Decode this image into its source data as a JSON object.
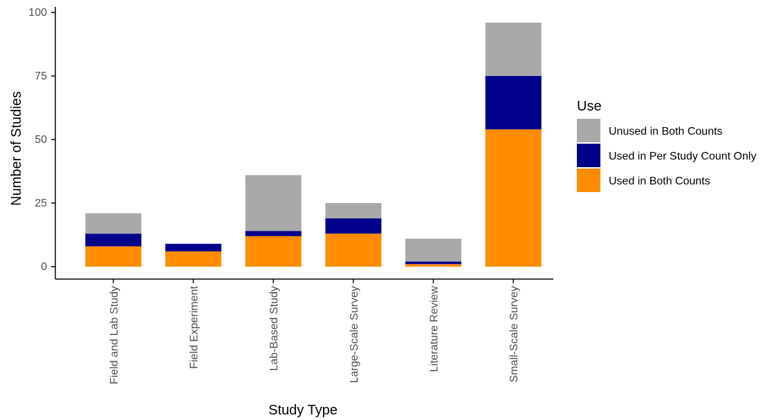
{
  "chart_data": {
    "type": "bar",
    "stacked": true,
    "title": "",
    "xlabel": "Study Type",
    "ylabel": "Number of Studies",
    "ylim": [
      0,
      100
    ],
    "yticks": [
      0,
      25,
      50,
      75,
      100
    ],
    "grid": false,
    "legend_title": "Use",
    "legend_position": "right",
    "categories": [
      "Field and Lab Study",
      "Field Experiment",
      "Lab-Based Study",
      "Large-Scale Survey",
      "Literature Review",
      "Small-Scale Survey"
    ],
    "series": [
      {
        "name": "Used in Both Counts",
        "color": "#ff8c00",
        "values": [
          8,
          6,
          12,
          13,
          1,
          54
        ]
      },
      {
        "name": "Used in Per Study Count Only",
        "color": "#00008b",
        "values": [
          5,
          3,
          2,
          6,
          1,
          21
        ]
      },
      {
        "name": "Unused in Both Counts",
        "color": "#a9a9a9",
        "values": [
          8,
          0,
          22,
          6,
          9,
          21
        ]
      }
    ],
    "legend_order": [
      "Unused in Both Counts",
      "Used in Per Study Count Only",
      "Used in Both Counts"
    ]
  }
}
